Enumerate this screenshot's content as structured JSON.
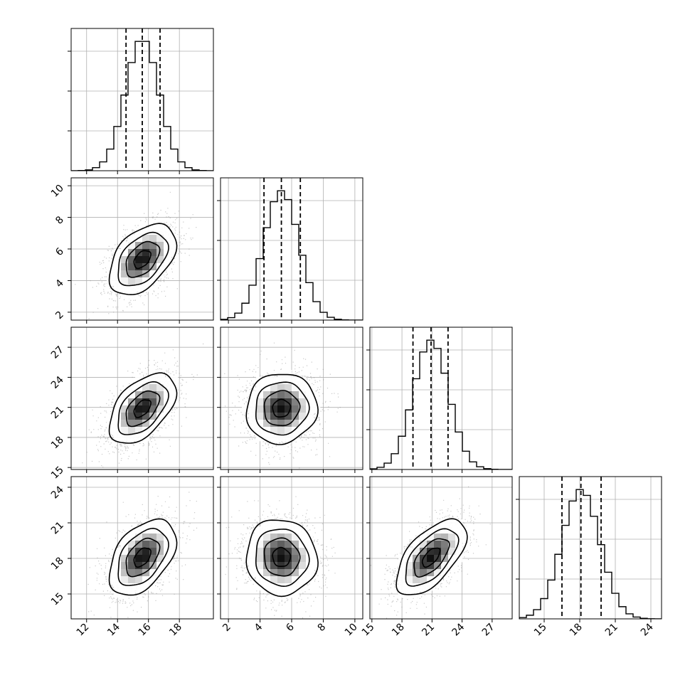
{
  "chart_data": {
    "type": "corner",
    "variables": [
      {
        "mean": 15.6,
        "sd": 1.08,
        "quantiles": [
          14.55,
          15.6,
          16.75
        ],
        "range": [
          11,
          20.2
        ],
        "ticks": [
          12,
          14,
          16,
          18
        ]
      },
      {
        "mean": 5.35,
        "sd": 1.12,
        "quantiles": [
          4.25,
          5.35,
          6.55
        ],
        "range": [
          1.5,
          10.5
        ],
        "ticks": [
          2,
          4,
          6,
          8,
          10
        ]
      },
      {
        "mean": 20.9,
        "sd": 1.75,
        "quantiles": [
          19.1,
          20.9,
          22.6
        ],
        "range": [
          14.8,
          29
        ],
        "ticks": [
          15,
          18,
          21,
          24,
          27
        ]
      },
      {
        "mean": 18.1,
        "sd": 1.6,
        "quantiles": [
          16.5,
          18.1,
          19.8
        ],
        "range": [
          12.9,
          24.9
        ],
        "ticks": [
          15,
          18,
          21,
          24
        ]
      }
    ],
    "correlations": [
      [
        1.0,
        0.45,
        0.5,
        0.45
      ],
      [
        0.45,
        1.0,
        0.05,
        -0.05
      ],
      [
        0.5,
        0.05,
        1.0,
        0.6
      ],
      [
        0.45,
        -0.05,
        0.6,
        1.0
      ]
    ],
    "histogram_bins": 20,
    "contour_levels_sigma": [
      0.5,
      1.0,
      1.5,
      2.0
    ],
    "grid": true,
    "colors": {
      "hist": "#000000",
      "points": "#888888",
      "contour": "#000000",
      "grid": "#b0b0b0"
    }
  }
}
